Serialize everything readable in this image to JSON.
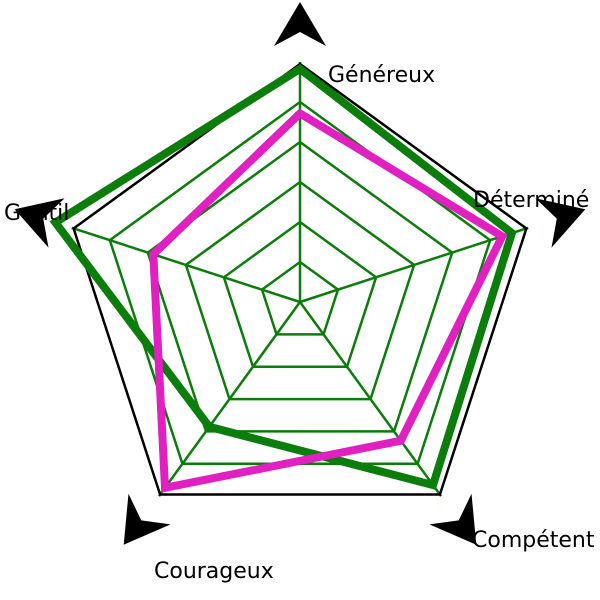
{
  "chart_data": {
    "type": "radar",
    "axes": [
      "Généreux",
      "Déterminé",
      "Compétent",
      "Courageux",
      "Gentil"
    ],
    "scale_max": 7,
    "grid_rings": 6,
    "series": [
      {
        "color": "#0b7d0b",
        "values": [
          6.8,
          6.5,
          6.6,
          4.5,
          7.5
        ]
      },
      {
        "color": "#e020c0",
        "values": [
          5.5,
          6.2,
          5.0,
          6.7,
          4.5
        ]
      }
    ],
    "grid_color": "#0b7d0b",
    "outline_color": "#000000"
  }
}
